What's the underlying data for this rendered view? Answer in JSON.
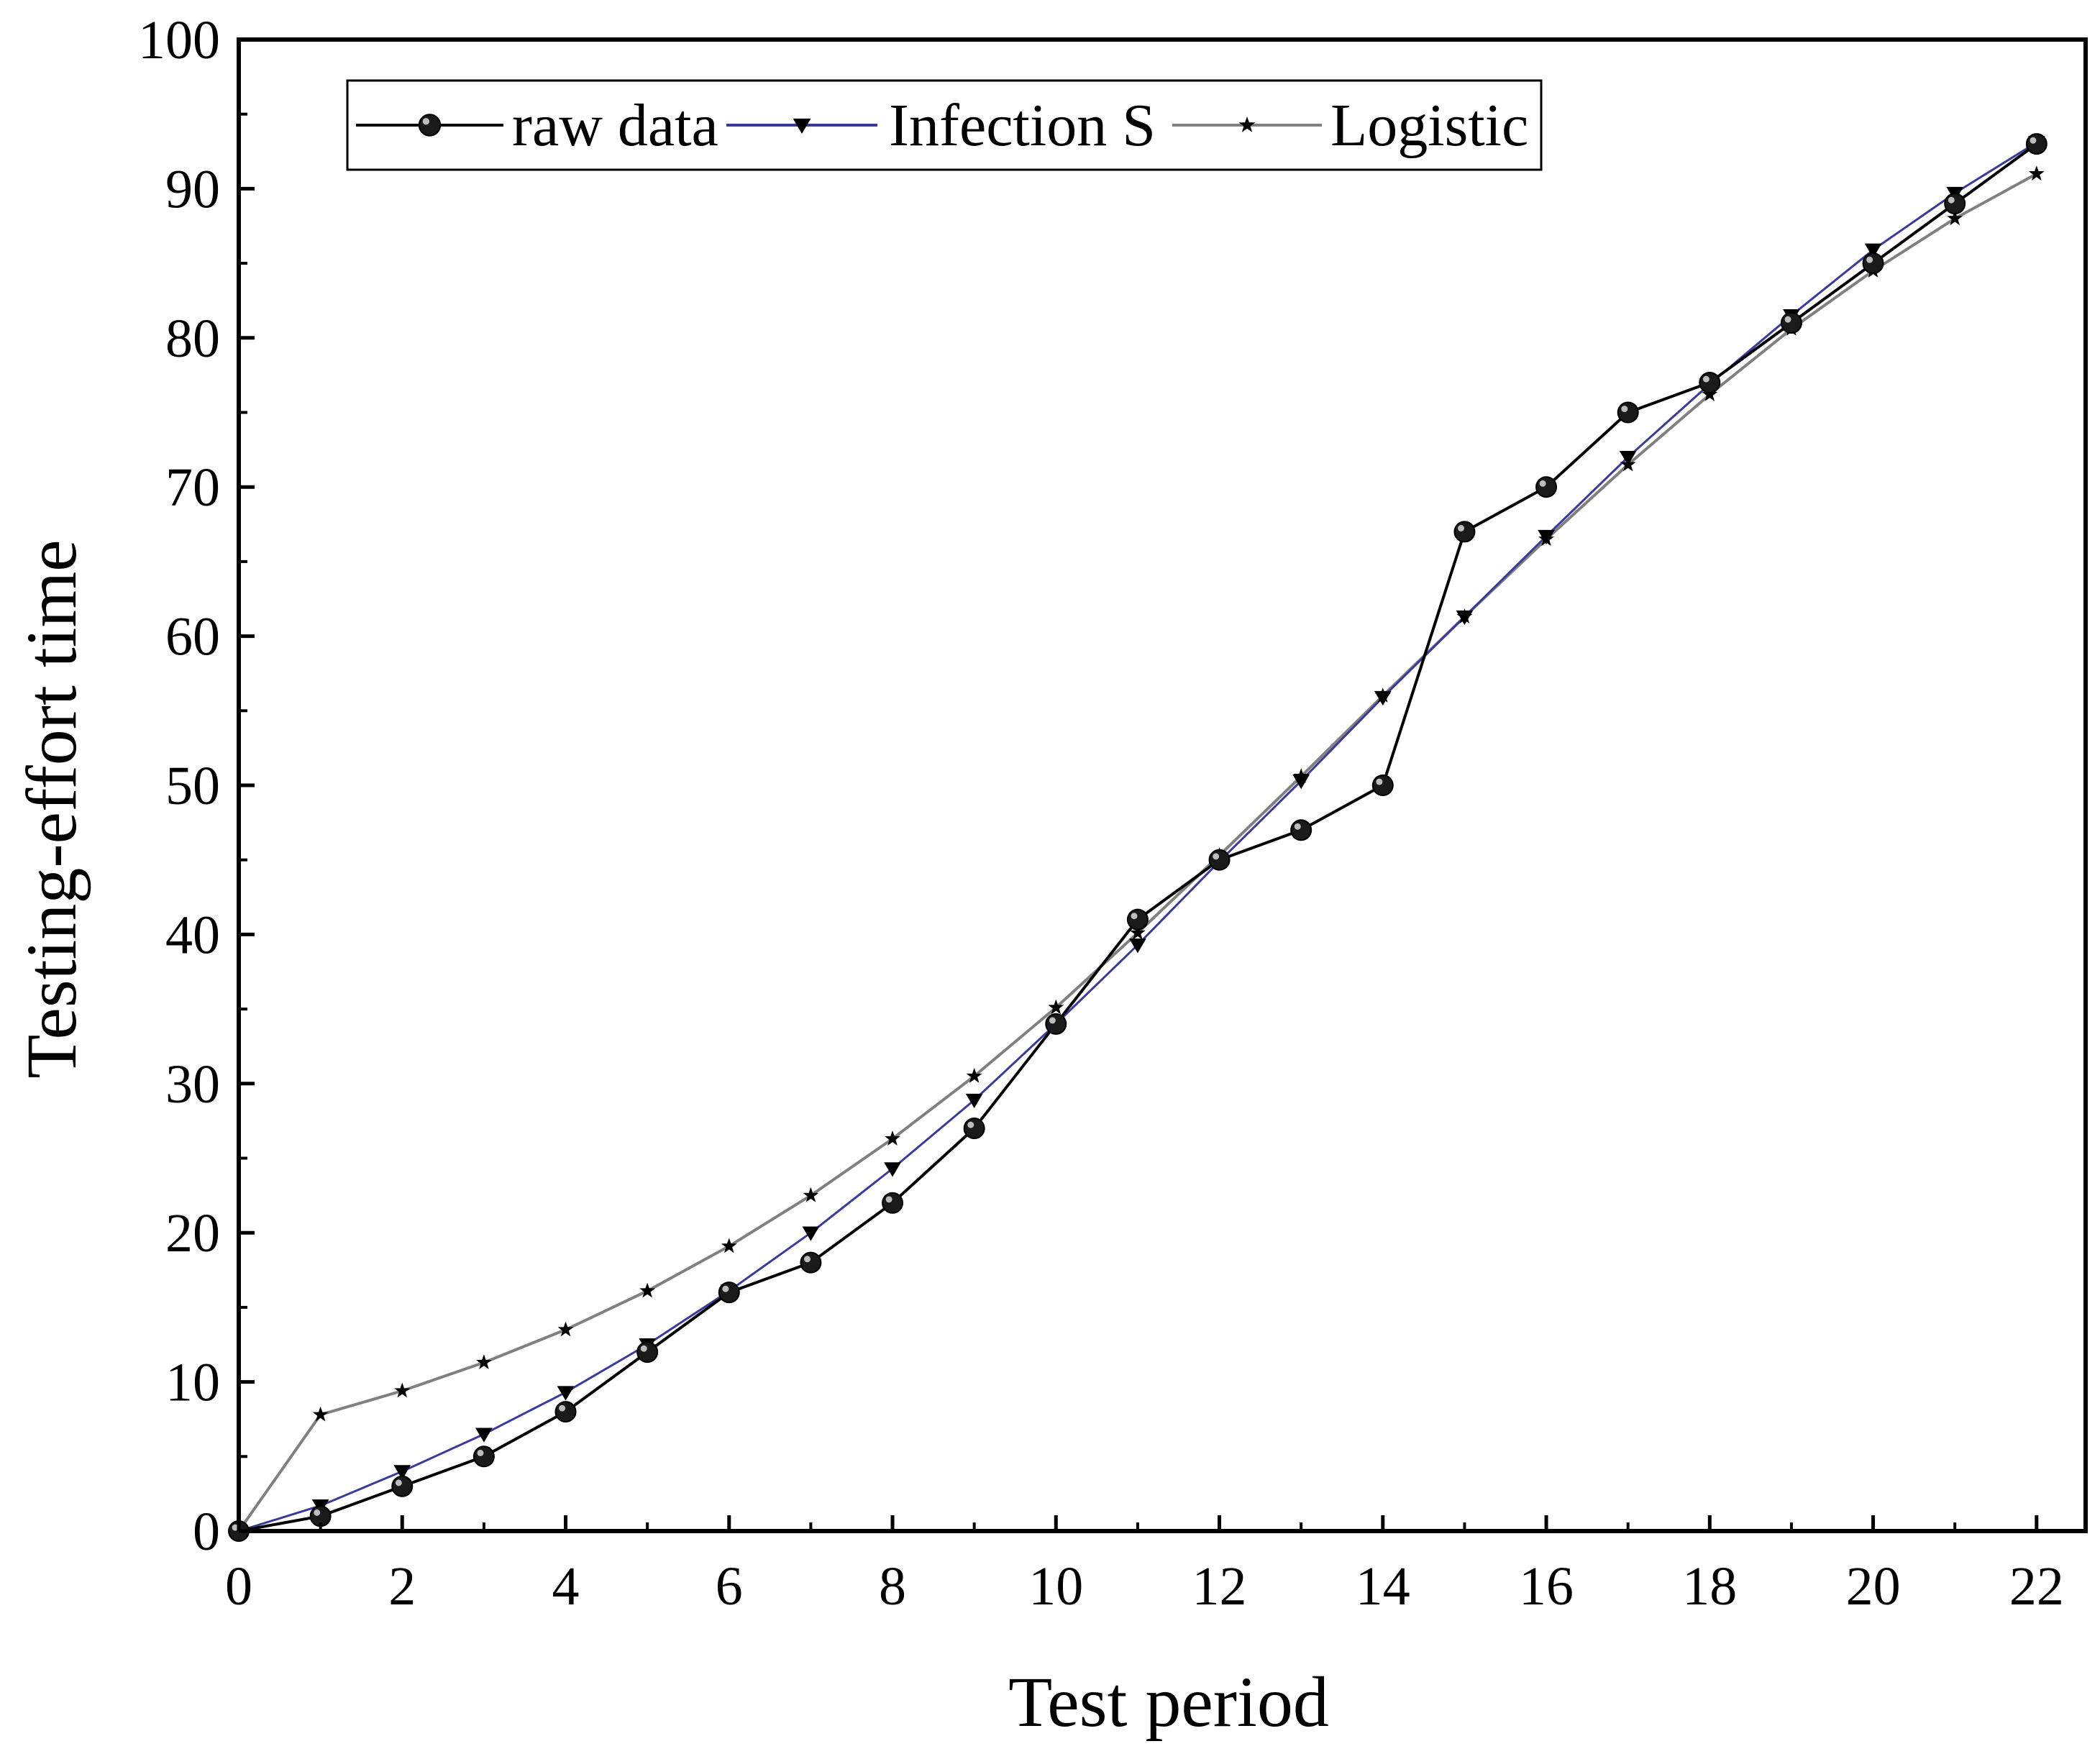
{
  "chart_data": {
    "type": "line",
    "title": "",
    "xlabel": "Test period",
    "ylabel": "Testing-effort time",
    "xlim": [
      0,
      22.6
    ],
    "ylim": [
      0,
      100
    ],
    "x_ticks": [
      0,
      2,
      4,
      6,
      8,
      10,
      12,
      14,
      16,
      18,
      20,
      22
    ],
    "y_ticks": [
      0,
      10,
      20,
      30,
      40,
      50,
      60,
      70,
      80,
      90,
      100
    ],
    "grid": false,
    "legend_position": "top-left",
    "series": [
      {
        "name": "raw data",
        "marker": "circle",
        "color": "#000000",
        "x": [
          0,
          1,
          2,
          3,
          4,
          5,
          6,
          7,
          8,
          9,
          10,
          11,
          12,
          13,
          14,
          15,
          16,
          17,
          18,
          19,
          20,
          21,
          22
        ],
        "values": [
          0,
          1,
          3,
          5,
          8,
          12,
          16,
          18,
          22,
          27,
          34,
          41,
          45,
          47,
          50,
          67,
          70,
          75,
          77,
          81,
          85,
          89,
          93
        ]
      },
      {
        "name": "Infection S",
        "marker": "triangle-down",
        "color": "#3a3a9a",
        "x": [
          0,
          1,
          2,
          3,
          4,
          5,
          6,
          7,
          8,
          9,
          10,
          11,
          12,
          13,
          14,
          15,
          16,
          17,
          18,
          19,
          20,
          21,
          22
        ],
        "values": [
          0,
          1.7,
          4.0,
          6.5,
          9.3,
          12.5,
          16.1,
          20.0,
          24.3,
          28.9,
          34.0,
          39.3,
          44.9,
          50.3,
          55.9,
          61.3,
          66.7,
          72.0,
          76.9,
          81.5,
          85.9,
          89.7,
          93.1
        ]
      },
      {
        "name": "Logistic",
        "marker": "star",
        "color": "#808080",
        "x": [
          0,
          1,
          2,
          3,
          4,
          5,
          6,
          7,
          8,
          9,
          10,
          11,
          12,
          13,
          14,
          15,
          16,
          17,
          18,
          19,
          20,
          21,
          22
        ],
        "values": [
          0,
          7.8,
          9.4,
          11.3,
          13.5,
          16.1,
          19.1,
          22.5,
          26.3,
          30.5,
          35.1,
          40.1,
          45.3,
          50.6,
          56.0,
          61.3,
          66.5,
          71.5,
          76.2,
          80.6,
          84.5,
          88.0,
          91.0
        ]
      }
    ]
  }
}
